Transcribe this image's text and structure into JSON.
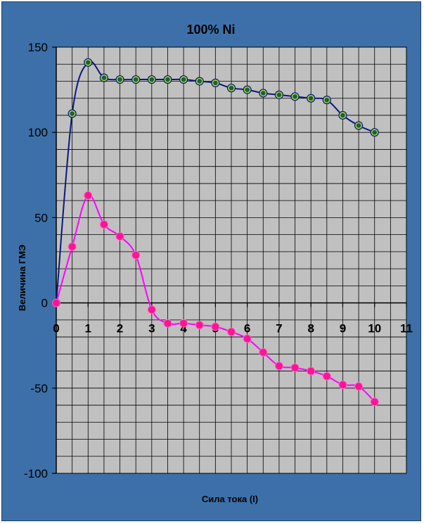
{
  "chart_data": {
    "type": "line",
    "title": "100% Ni",
    "xlabel": "Сила тока (I)",
    "ylabel": "Величина ГМЭ",
    "xlim": [
      0,
      11
    ],
    "ylim": [
      -100,
      150
    ],
    "x_ticks": [
      "0",
      "1",
      "2",
      "3",
      "4",
      "5",
      "6",
      "7",
      "8",
      "9",
      "10",
      "11"
    ],
    "y_ticks": [
      "150",
      "100",
      "50",
      "0",
      "-50",
      "-100"
    ],
    "grid": true,
    "legend": "none",
    "series": [
      {
        "color": "#0a1a80",
        "marker_color": "#1e5a4a",
        "x": [
          0,
          0.5,
          1,
          1.5,
          2,
          2.5,
          3,
          3.5,
          4,
          4.5,
          5,
          5.5,
          6,
          6.5,
          7,
          7.5,
          8,
          8.5,
          9,
          9.5,
          10
        ],
        "y": [
          0,
          111,
          141,
          132,
          131,
          131,
          131,
          131,
          131,
          130,
          129,
          126,
          125,
          123,
          122,
          121,
          120,
          119,
          110,
          104,
          100
        ]
      },
      {
        "color": "#ff00ff",
        "marker_color": "#ff1493",
        "x": [
          0,
          0.5,
          1,
          1.5,
          2,
          2.5,
          3,
          3.5,
          4,
          4.5,
          5,
          5.5,
          6,
          6.5,
          7,
          7.5,
          8,
          8.5,
          9,
          9.5,
          10
        ],
        "y": [
          0,
          33,
          63,
          46,
          39,
          28,
          -4,
          -12,
          -12,
          -13,
          -14,
          -17,
          -21,
          -29,
          -37,
          -38,
          -40,
          -43,
          -48,
          -49,
          -58
        ]
      }
    ]
  }
}
